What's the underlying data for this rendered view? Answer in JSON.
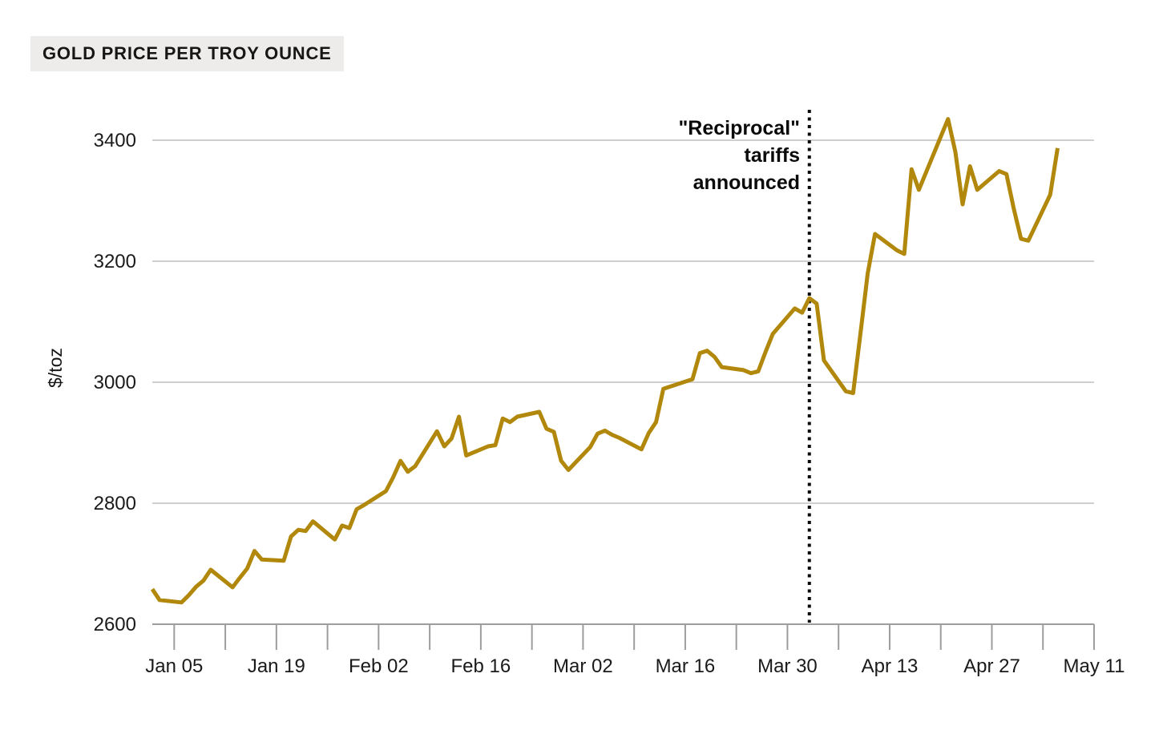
{
  "title": "GOLD PRICE PER TROY OUNCE",
  "y_axis": {
    "label": "$/toz"
  },
  "annotation": {
    "text": "\"Reciprocal\"\ntariffs\nannounced",
    "event_date": "Apr 02"
  },
  "colors": {
    "line": "#B1880B",
    "grid": "#CFCFCF",
    "axis": "#9D9D9D",
    "tick_text": "#1A1A1A",
    "title_bg": "#EDECEA",
    "annotation_line": "#0A0A0A",
    "background": "#FFFFFF"
  },
  "chart_data": {
    "type": "line",
    "title": "GOLD PRICE PER TROY OUNCE",
    "xlabel": "",
    "ylabel": "$/toz",
    "ylim": [
      2600,
      3450
    ],
    "x_range": [
      "Jan 02",
      "May 11"
    ],
    "grid": "horizontal-only",
    "legend_position": "none",
    "y_ticks": [
      2600,
      2800,
      3000,
      3200,
      3400
    ],
    "x_tick_labels": [
      "Jan 05",
      "Jan 19",
      "Feb 02",
      "Feb 16",
      "Mar 02",
      "Mar 16",
      "Mar 30",
      "Apr 13",
      "Apr 27",
      "May 11"
    ],
    "x_minor_ticks": "weekly between labeled ticks",
    "annotation": {
      "label": "\"Reciprocal\"\ntariffs\nannounced",
      "date": "Apr 02",
      "style": "vertical dotted line"
    },
    "series": [
      {
        "name": "Gold price per troy ounce ($/toz)",
        "color": "#B1880B",
        "points": [
          [
            "Jan 02",
            2658
          ],
          [
            "Jan 03",
            2640
          ],
          [
            "Jan 06",
            2636
          ],
          [
            "Jan 07",
            2648
          ],
          [
            "Jan 08",
            2662
          ],
          [
            "Jan 09",
            2672
          ],
          [
            "Jan 10",
            2690
          ],
          [
            "Jan 13",
            2661
          ],
          [
            "Jan 14",
            2677
          ],
          [
            "Jan 15",
            2692
          ],
          [
            "Jan 16",
            2721
          ],
          [
            "Jan 17",
            2707
          ],
          [
            "Jan 20",
            2705
          ],
          [
            "Jan 21",
            2745
          ],
          [
            "Jan 22",
            2756
          ],
          [
            "Jan 23",
            2754
          ],
          [
            "Jan 24",
            2770
          ],
          [
            "Jan 27",
            2740
          ],
          [
            "Jan 28",
            2763
          ],
          [
            "Jan 29",
            2759
          ],
          [
            "Jan 30",
            2790
          ],
          [
            "Jan 31",
            2797
          ],
          [
            "Feb 03",
            2820
          ],
          [
            "Feb 04",
            2843
          ],
          [
            "Feb 05",
            2870
          ],
          [
            "Feb 06",
            2852
          ],
          [
            "Feb 07",
            2861
          ],
          [
            "Feb 10",
            2919
          ],
          [
            "Feb 11",
            2894
          ],
          [
            "Feb 12",
            2907
          ],
          [
            "Feb 13",
            2943
          ],
          [
            "Feb 14",
            2879
          ],
          [
            "Feb 17",
            2894
          ],
          [
            "Feb 18",
            2896
          ],
          [
            "Feb 19",
            2940
          ],
          [
            "Feb 20",
            2934
          ],
          [
            "Feb 21",
            2943
          ],
          [
            "Feb 24",
            2951
          ],
          [
            "Feb 25",
            2923
          ],
          [
            "Feb 26",
            2918
          ],
          [
            "Feb 27",
            2870
          ],
          [
            "Feb 28",
            2855
          ],
          [
            "Mar 03",
            2893
          ],
          [
            "Mar 04",
            2915
          ],
          [
            "Mar 05",
            2920
          ],
          [
            "Mar 06",
            2913
          ],
          [
            "Mar 07",
            2908
          ],
          [
            "Mar 10",
            2889
          ],
          [
            "Mar 11",
            2916
          ],
          [
            "Mar 12",
            2934
          ],
          [
            "Mar 13",
            2989
          ],
          [
            "Mar 14",
            2993
          ],
          [
            "Mar 17",
            3005
          ],
          [
            "Mar 18",
            3048
          ],
          [
            "Mar 19",
            3052
          ],
          [
            "Mar 20",
            3042
          ],
          [
            "Mar 21",
            3025
          ],
          [
            "Mar 24",
            3020
          ],
          [
            "Mar 25",
            3015
          ],
          [
            "Mar 26",
            3018
          ],
          [
            "Mar 27",
            3050
          ],
          [
            "Mar 28",
            3080
          ],
          [
            "Mar 31",
            3122
          ],
          [
            "Apr 01",
            3115
          ],
          [
            "Apr 02",
            3139
          ],
          [
            "Apr 03",
            3130
          ],
          [
            "Apr 04",
            3036
          ],
          [
            "Apr 07",
            2985
          ],
          [
            "Apr 08",
            2982
          ],
          [
            "Apr 09",
            3080
          ],
          [
            "Apr 10",
            3180
          ],
          [
            "Apr 11",
            3245
          ],
          [
            "Apr 14",
            3218
          ],
          [
            "Apr 15",
            3212
          ],
          [
            "Apr 16",
            3352
          ],
          [
            "Apr 17",
            3318
          ],
          [
            "Apr 21",
            3435
          ],
          [
            "Apr 22",
            3381
          ],
          [
            "Apr 23",
            3294
          ],
          [
            "Apr 24",
            3357
          ],
          [
            "Apr 25",
            3318
          ],
          [
            "Apr 28",
            3349
          ],
          [
            "Apr 29",
            3344
          ],
          [
            "Apr 30",
            3287
          ],
          [
            "May 01",
            3237
          ],
          [
            "May 02",
            3234
          ],
          [
            "May 05",
            3310
          ],
          [
            "May 06",
            3387
          ]
        ]
      }
    ]
  }
}
